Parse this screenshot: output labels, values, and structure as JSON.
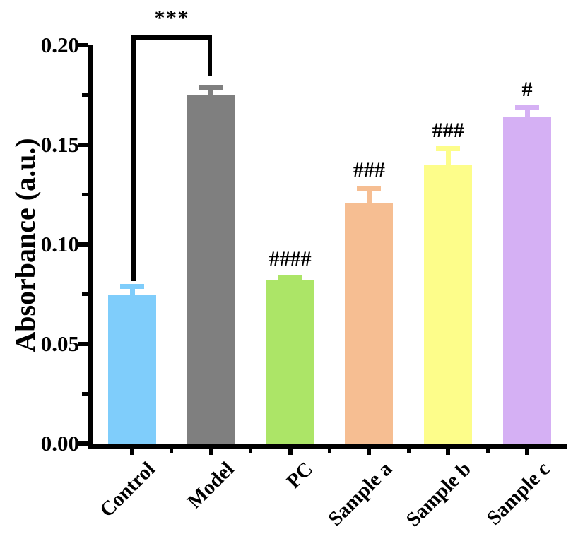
{
  "chart_data": {
    "type": "bar",
    "title": "",
    "ylabel": "Absorbance (a.u.)",
    "xlabel": "",
    "categories": [
      "Control",
      "Model",
      "PC",
      "Sample a",
      "Sample b",
      "Sample c"
    ],
    "values": [
      0.075,
      0.175,
      0.082,
      0.121,
      0.14,
      0.164
    ],
    "errors": [
      0.004,
      0.004,
      0.0015,
      0.007,
      0.008,
      0.0045
    ],
    "bar_colors": [
      "#7FCDFB",
      "#7F7F7F",
      "#ACE567",
      "#F6BE92",
      "#FDFD8A",
      "#D5B0F4"
    ],
    "ylim": [
      0,
      0.2
    ],
    "ytick_major_step": 0.05,
    "ytick_minor_step": 0.025,
    "ytick_labels": [
      "0.00",
      "0.05",
      "0.10",
      "0.15",
      "0.20"
    ],
    "grid": false,
    "legend": "none",
    "error_bars": "caps drawn in same color as bar",
    "significance": {
      "bracket": {
        "label": "***",
        "from": "Control",
        "to": "Model"
      },
      "hash_labels": [
        {
          "category": "PC",
          "label": "####"
        },
        {
          "category": "Sample a",
          "label": "###"
        },
        {
          "category": "Sample b",
          "label": "###"
        },
        {
          "category": "Sample c",
          "label": "#"
        }
      ]
    },
    "axis_color": "#000000",
    "text_color": "#000000",
    "background_color": "#ffffff"
  }
}
